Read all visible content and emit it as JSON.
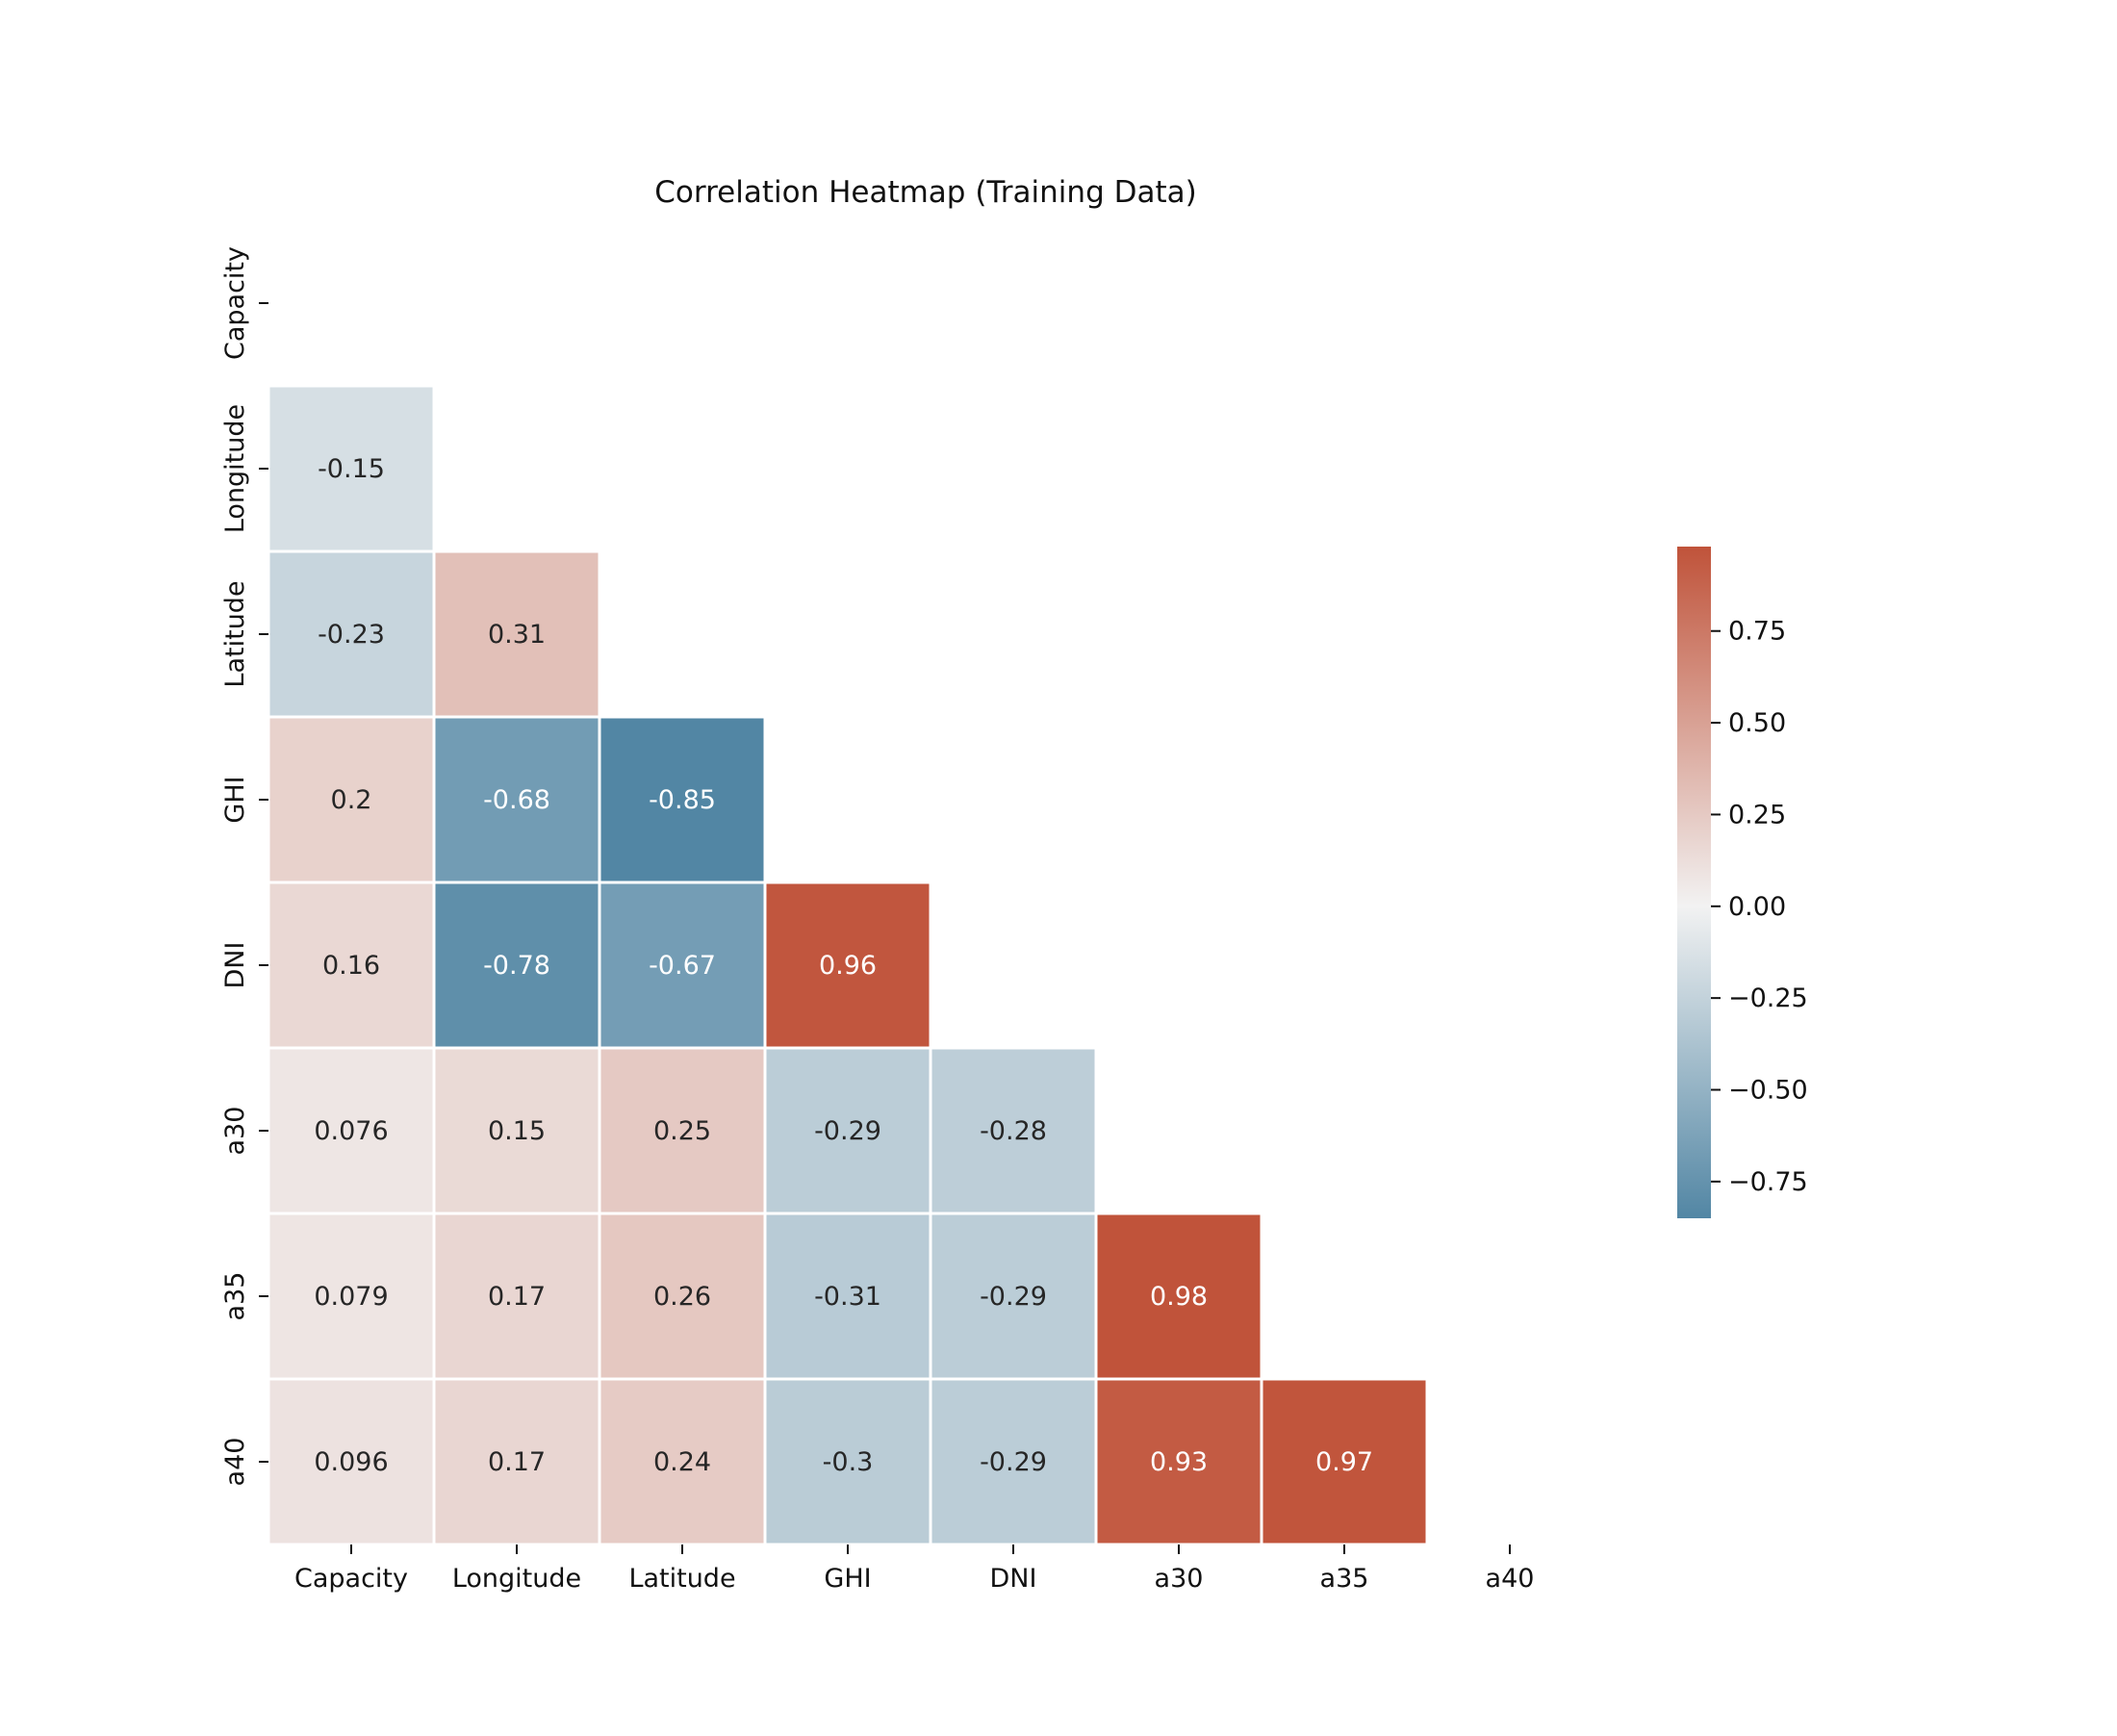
{
  "chart_data": {
    "type": "heatmap",
    "title": "Correlation Heatmap (Training Data)",
    "xlabel": "",
    "ylabel": "",
    "variables": [
      "Capacity",
      "Longitude",
      "Latitude",
      "GHI",
      "DNI",
      "a30",
      "a35",
      "a40"
    ],
    "mask": "upper-triangle-including-diagonal",
    "matrix": [
      [
        null,
        null,
        null,
        null,
        null,
        null,
        null,
        null
      ],
      [
        "-0.15",
        null,
        null,
        null,
        null,
        null,
        null,
        null
      ],
      [
        "-0.23",
        "0.31",
        null,
        null,
        null,
        null,
        null,
        null
      ],
      [
        "0.2",
        "-0.68",
        "-0.85",
        null,
        null,
        null,
        null,
        null
      ],
      [
        "0.16",
        "-0.78",
        "-0.67",
        "0.96",
        null,
        null,
        null,
        null
      ],
      [
        "0.076",
        "0.15",
        "0.25",
        "-0.29",
        "-0.28",
        null,
        null,
        null
      ],
      [
        "0.079",
        "0.17",
        "0.26",
        "-0.31",
        "-0.29",
        "0.98",
        null,
        null
      ],
      [
        "0.096",
        "0.17",
        "0.24",
        "-0.3",
        "-0.29",
        "0.93",
        "0.97",
        null
      ]
    ],
    "colorbar": {
      "range": [
        -0.85,
        0.98
      ],
      "ticks": [
        0.75,
        0.5,
        0.25,
        0.0,
        -0.25,
        -0.5,
        -0.75
      ],
      "tick_labels": [
        "0.75",
        "0.50",
        "0.25",
        "0.00",
        "−0.25",
        "−0.50",
        "−0.75"
      ],
      "colormap": "diverging blue-white-red",
      "color_negative": "#5286a4",
      "color_zero": "#f2f2f2",
      "color_positive": "#c0533a"
    },
    "grid": false,
    "legend": "colorbar-right"
  }
}
